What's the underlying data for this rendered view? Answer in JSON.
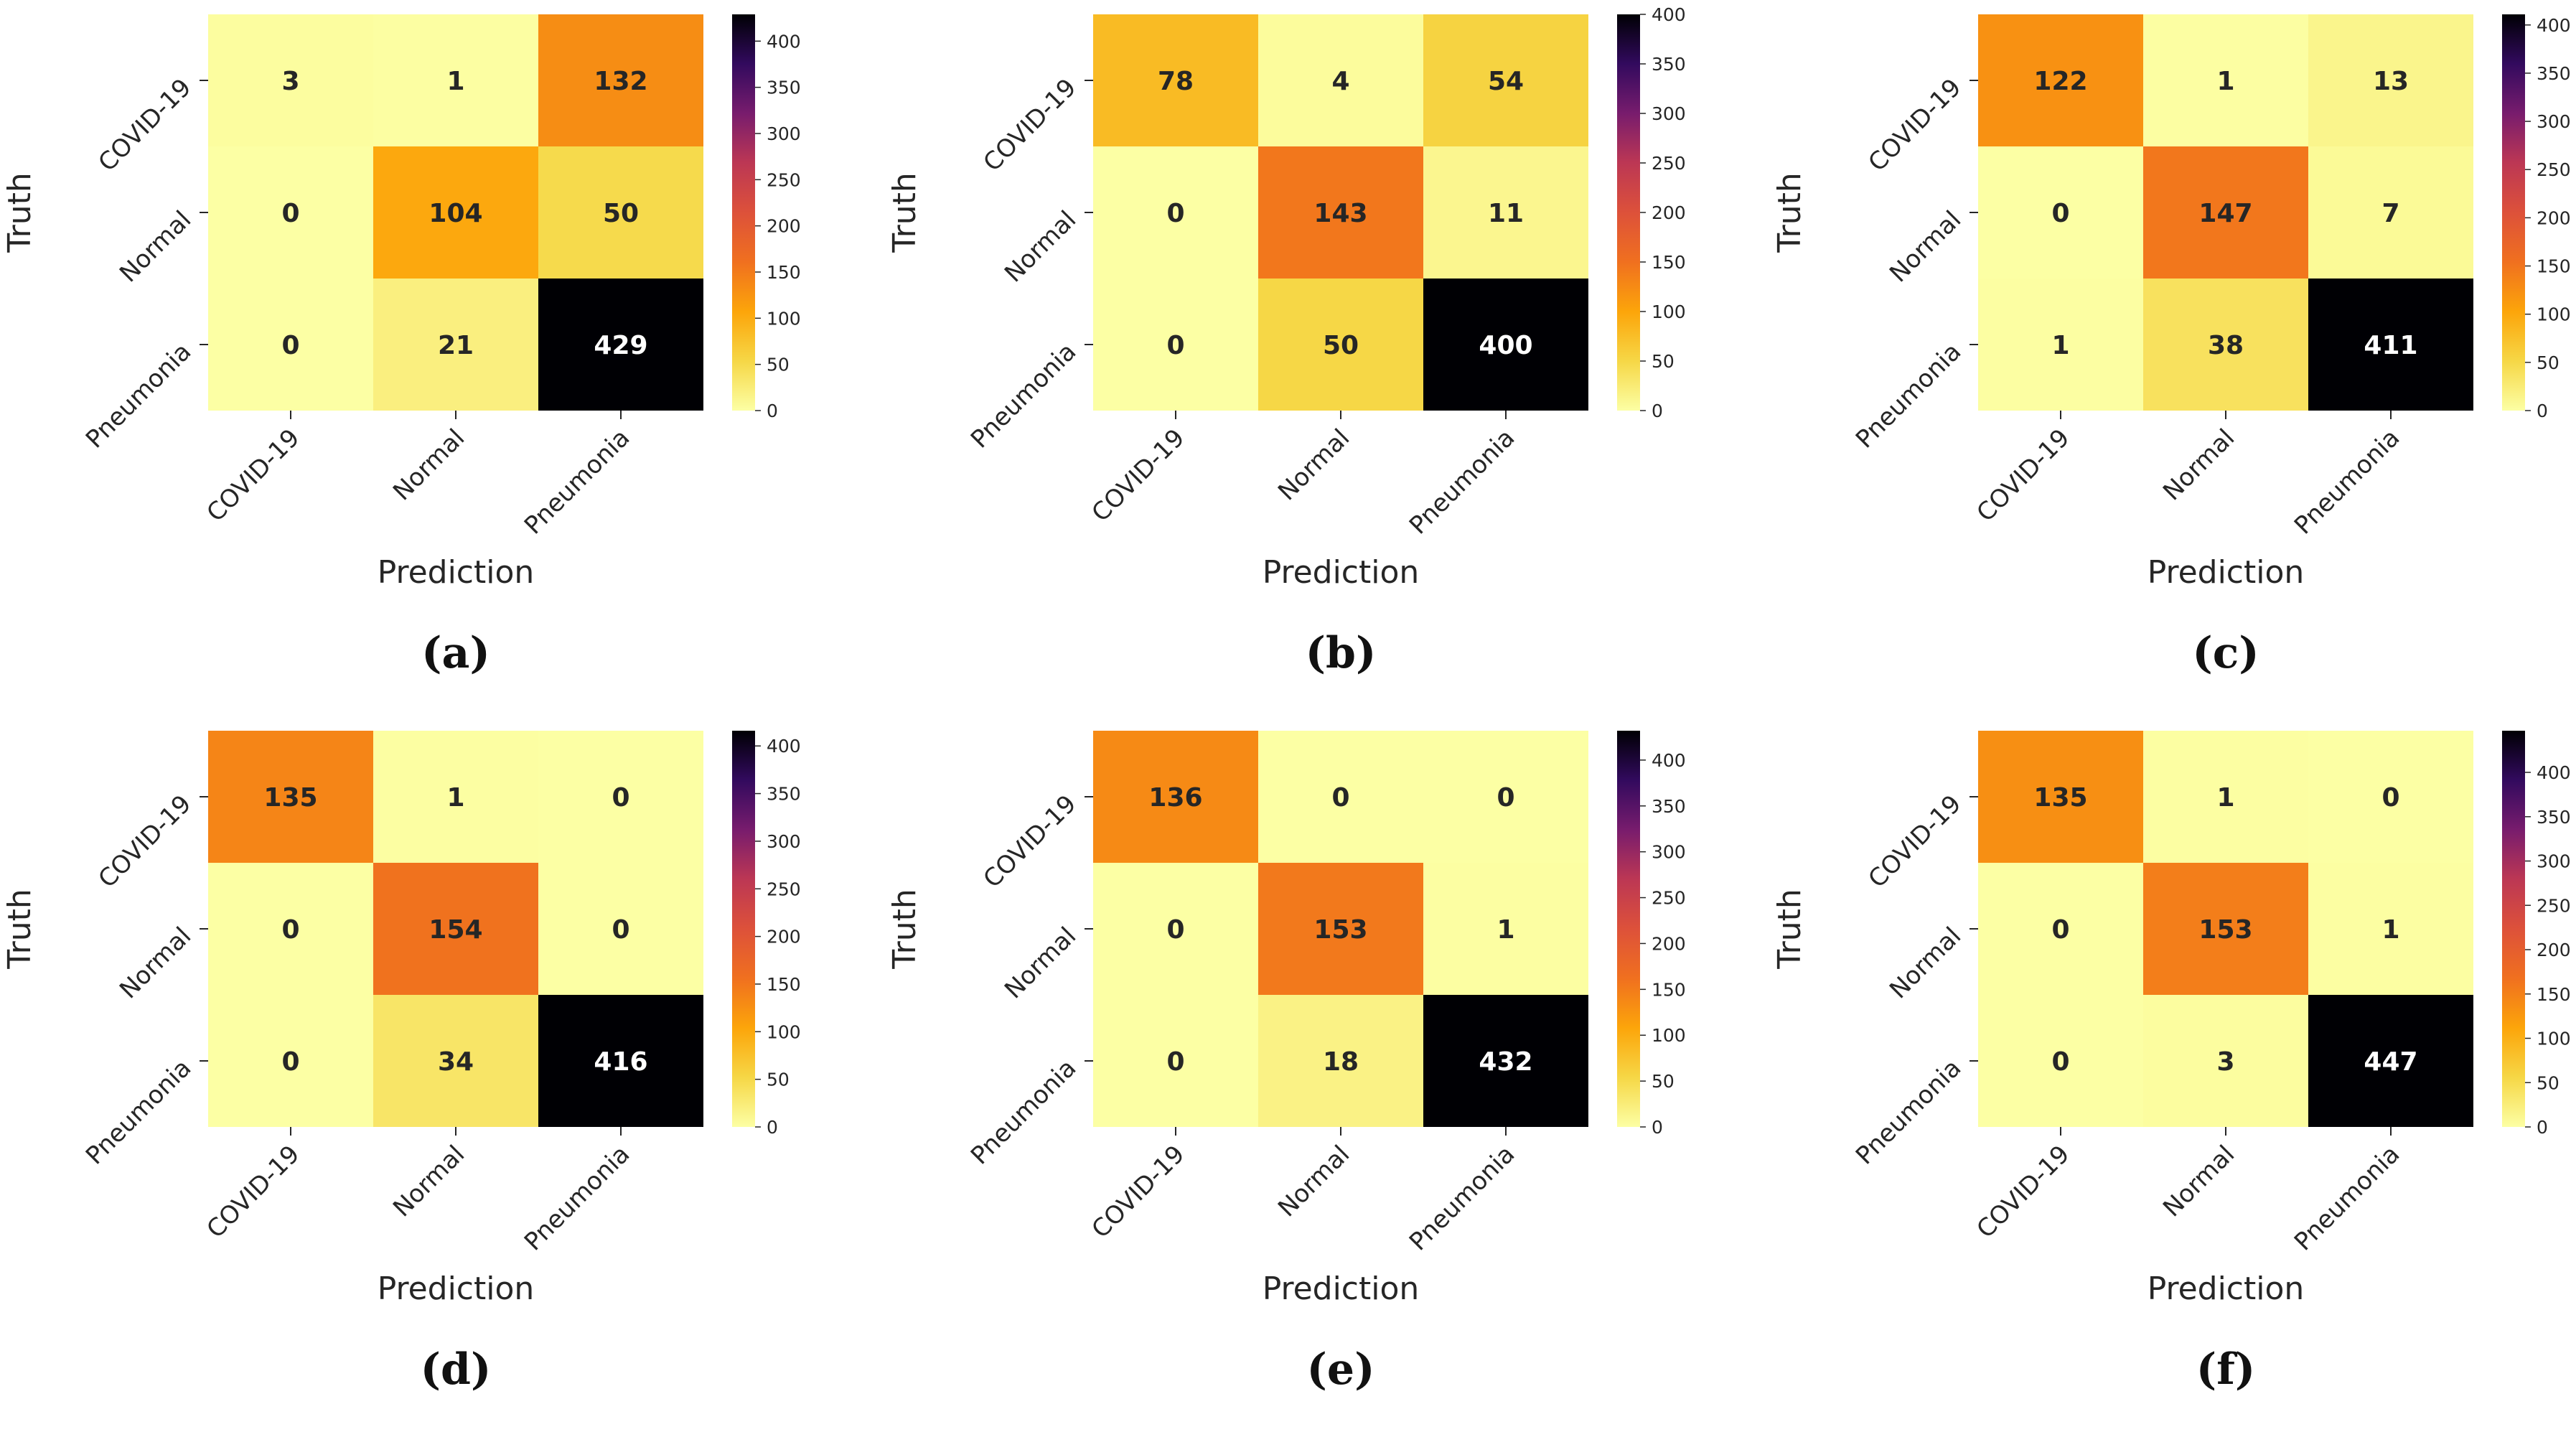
{
  "chart_data": [
    {
      "type": "heatmap",
      "panel_label": "(a)",
      "row_labels": [
        "COVID-19",
        "Normal",
        "Pneumonia"
      ],
      "col_labels": [
        "COVID-19",
        "Normal",
        "Pneumonia"
      ],
      "matrix": [
        [
          3,
          1,
          132
        ],
        [
          0,
          104,
          50
        ],
        [
          0,
          21,
          429
        ]
      ],
      "xlabel": "Prediction",
      "ylabel": "Truth",
      "colorbar": {
        "min": 0,
        "max": 429,
        "ticks": [
          0,
          50,
          100,
          150,
          200,
          250,
          300,
          350,
          400
        ]
      },
      "colormap": "inferno_r"
    },
    {
      "type": "heatmap",
      "panel_label": "(b)",
      "row_labels": [
        "COVID-19",
        "Normal",
        "Pneumonia"
      ],
      "col_labels": [
        "COVID-19",
        "Normal",
        "Pneumonia"
      ],
      "matrix": [
        [
          78,
          4,
          54
        ],
        [
          0,
          143,
          11
        ],
        [
          0,
          50,
          400
        ]
      ],
      "xlabel": "Prediction",
      "ylabel": "Truth",
      "colorbar": {
        "min": 0,
        "max": 400,
        "ticks": [
          0,
          50,
          100,
          150,
          200,
          250,
          300,
          350,
          400
        ]
      },
      "colormap": "inferno_r"
    },
    {
      "type": "heatmap",
      "panel_label": "(c)",
      "row_labels": [
        "COVID-19",
        "Normal",
        "Pneumonia"
      ],
      "col_labels": [
        "COVID-19",
        "Normal",
        "Pneumonia"
      ],
      "matrix": [
        [
          122,
          1,
          13
        ],
        [
          0,
          147,
          7
        ],
        [
          1,
          38,
          411
        ]
      ],
      "xlabel": "Prediction",
      "ylabel": "Truth",
      "colorbar": {
        "min": 0,
        "max": 411,
        "ticks": [
          0,
          50,
          100,
          150,
          200,
          250,
          300,
          350,
          400
        ]
      },
      "colormap": "inferno_r"
    },
    {
      "type": "heatmap",
      "panel_label": "(d)",
      "row_labels": [
        "COVID-19",
        "Normal",
        "Pneumonia"
      ],
      "col_labels": [
        "COVID-19",
        "Normal",
        "Pneumonia"
      ],
      "matrix": [
        [
          135,
          1,
          0
        ],
        [
          0,
          154,
          0
        ],
        [
          0,
          34,
          416
        ]
      ],
      "xlabel": "Prediction",
      "ylabel": "Truth",
      "colorbar": {
        "min": 0,
        "max": 416,
        "ticks": [
          0,
          50,
          100,
          150,
          200,
          250,
          300,
          350,
          400
        ]
      },
      "colormap": "inferno_r"
    },
    {
      "type": "heatmap",
      "panel_label": "(e)",
      "row_labels": [
        "COVID-19",
        "Normal",
        "Pneumonia"
      ],
      "col_labels": [
        "COVID-19",
        "Normal",
        "Pneumonia"
      ],
      "matrix": [
        [
          136,
          0,
          0
        ],
        [
          0,
          153,
          1
        ],
        [
          0,
          18,
          432
        ]
      ],
      "xlabel": "Prediction",
      "ylabel": "Truth",
      "colorbar": {
        "min": 0,
        "max": 432,
        "ticks": [
          0,
          50,
          100,
          150,
          200,
          250,
          300,
          350,
          400
        ]
      },
      "colormap": "inferno_r"
    },
    {
      "type": "heatmap",
      "panel_label": "(f)",
      "row_labels": [
        "COVID-19",
        "Normal",
        "Pneumonia"
      ],
      "col_labels": [
        "COVID-19",
        "Normal",
        "Pneumonia"
      ],
      "matrix": [
        [
          135,
          1,
          0
        ],
        [
          0,
          153,
          1
        ],
        [
          0,
          3,
          447
        ]
      ],
      "xlabel": "Prediction",
      "ylabel": "Truth",
      "colorbar": {
        "min": 0,
        "max": 447,
        "ticks": [
          0,
          50,
          100,
          150,
          200,
          250,
          300,
          350,
          400
        ]
      },
      "colormap": "inferno_r"
    }
  ]
}
